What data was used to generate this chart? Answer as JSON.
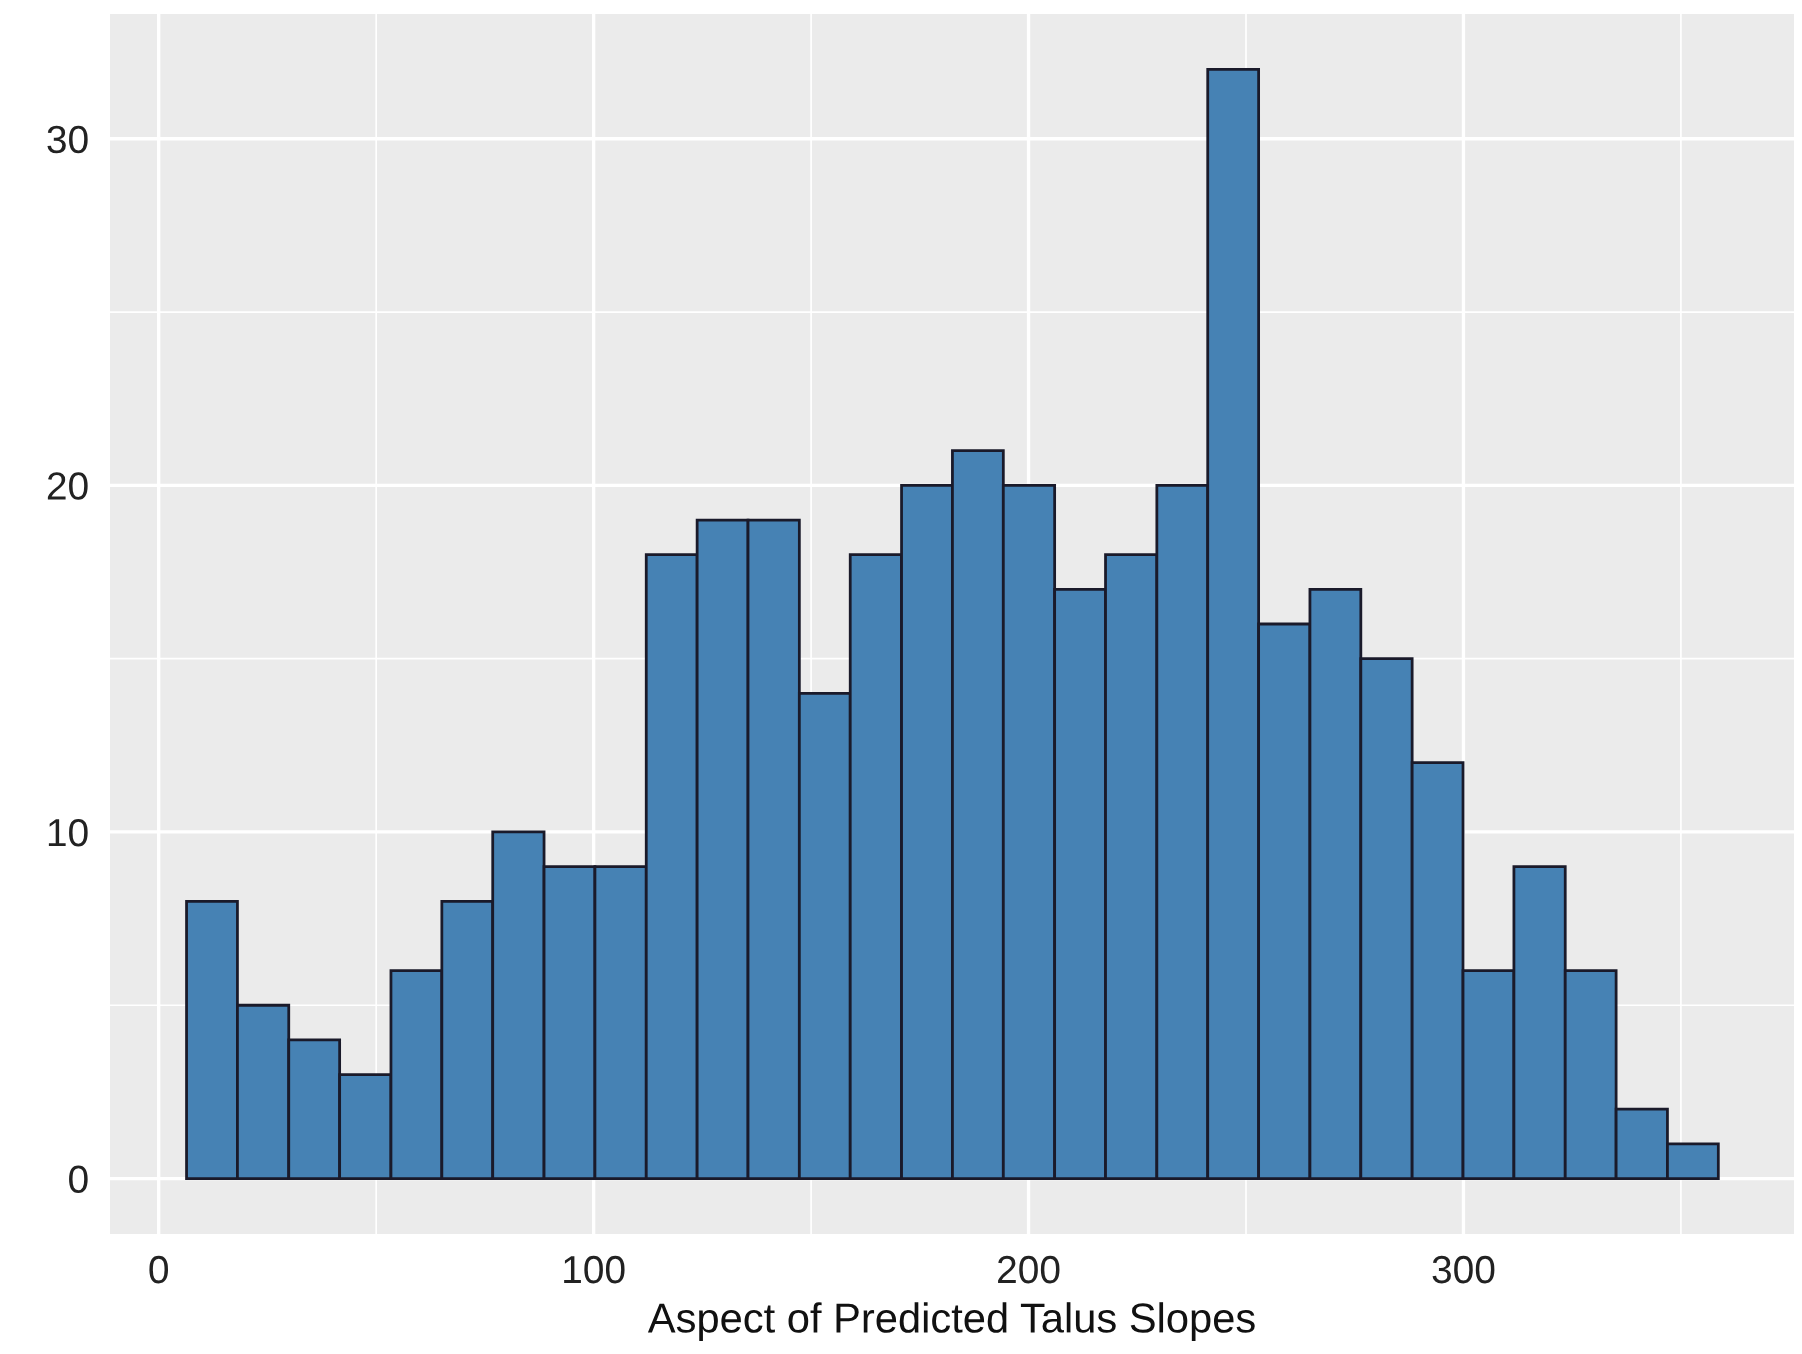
{
  "chart_data": {
    "type": "histogram",
    "xlabel": "Aspect of Predicted Talus Slopes",
    "bins": [
      6.4,
      18.1,
      29.9,
      41.6,
      53.4,
      65.1,
      76.8,
      88.6,
      100.3,
      112.1,
      123.8,
      135.5,
      147.3,
      159.0,
      170.8,
      182.5,
      194.2,
      206.0,
      217.7,
      229.5,
      241.2,
      252.9,
      264.7,
      276.4,
      288.2,
      299.9,
      311.6,
      323.4,
      335.1,
      346.9,
      358.6
    ],
    "values": [
      8,
      5,
      4,
      3,
      6,
      8,
      10,
      9,
      9,
      18,
      19,
      19,
      14,
      18,
      20,
      21,
      20,
      17,
      18,
      20,
      32,
      16,
      17,
      15,
      12,
      6,
      9,
      6,
      2,
      1
    ],
    "color": "#4682b4",
    "xlim": [
      -11.2,
      376
    ],
    "xticks": [
      0,
      {
        "value": 50,
        "label": null
      },
      100,
      {
        "value": 150,
        "label": null
      },
      200,
      {
        "value": 250,
        "label": null
      },
      300,
      {
        "value": 350,
        "label": null
      }
    ],
    "ylim": [
      -1.6,
      33.6
    ],
    "yticks": [
      0,
      {
        "value": 5,
        "label": null
      },
      10,
      {
        "value": 15,
        "label": null
      },
      20,
      {
        "value": 25,
        "label": null
      },
      30
    ],
    "grid": true
  }
}
